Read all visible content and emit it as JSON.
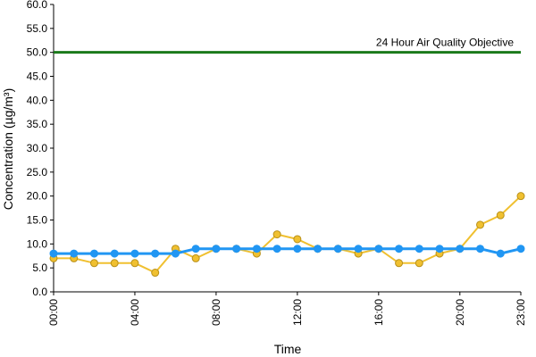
{
  "chart_data": {
    "type": "line",
    "xlabel": "Time",
    "ylabel": "Concentration (µg/m³)",
    "ylim": [
      0,
      60
    ],
    "yticks": [
      "0.0",
      "5.0",
      "10.0",
      "15.0",
      "20.0",
      "25.0",
      "30.0",
      "35.0",
      "40.0",
      "45.0",
      "50.0",
      "55.0",
      "60.0"
    ],
    "xlim": [
      0,
      23
    ],
    "xticks": [
      {
        "hour": 0,
        "label": "00:00"
      },
      {
        "hour": 4,
        "label": "04:00"
      },
      {
        "hour": 8,
        "label": "08:00"
      },
      {
        "hour": 12,
        "label": "12:00"
      },
      {
        "hour": 16,
        "label": "16:00"
      },
      {
        "hour": 20,
        "label": "20:00"
      },
      {
        "hour": 23,
        "label": "23:00"
      }
    ],
    "grid": false,
    "x": [
      0,
      1,
      2,
      3,
      4,
      5,
      6,
      7,
      8,
      9,
      10,
      11,
      12,
      13,
      14,
      15,
      16,
      17,
      18,
      19,
      20,
      21,
      22,
      23
    ],
    "series": [
      {
        "color": "#f0c030",
        "values": [
          7,
          7,
          6,
          6,
          6,
          4,
          9,
          7,
          9,
          9,
          8,
          12,
          11,
          9,
          9,
          8,
          9,
          6,
          6,
          8,
          9,
          14,
          16,
          20
        ]
      },
      {
        "color": "#2196f3",
        "values": [
          8,
          8,
          8,
          8,
          8,
          8,
          8,
          9,
          9,
          9,
          9,
          9,
          9,
          9,
          9,
          9,
          9,
          9,
          9,
          9,
          9,
          9,
          8,
          9
        ]
      }
    ],
    "reference_line": {
      "value": 50,
      "label": "24 Hour Air Quality Objective",
      "color": "#1b7a1b"
    }
  }
}
